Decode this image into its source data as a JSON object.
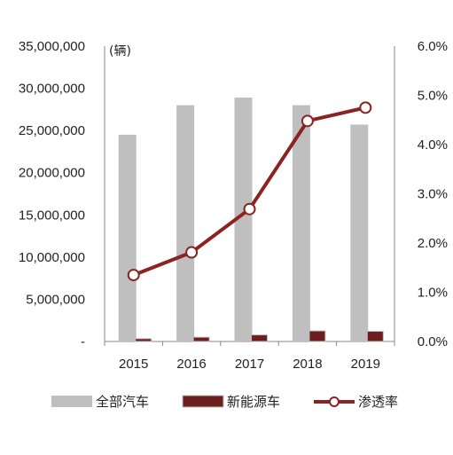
{
  "chart_data": {
    "type": "bar",
    "title": "",
    "xlabel": "",
    "unit_label": "(辆)",
    "categories": [
      "2015",
      "2016",
      "2017",
      "2018",
      "2019"
    ],
    "series": [
      {
        "name": "全部汽车",
        "kind": "bar",
        "axis": "left",
        "color": "#bfbfbf",
        "values": [
          24500000,
          28000000,
          28900000,
          28000000,
          25700000
        ]
      },
      {
        "name": "新能源车",
        "kind": "bar",
        "axis": "left",
        "color": "#6b1f1f",
        "values": [
          331000,
          507000,
          777000,
          1256000,
          1206000
        ]
      },
      {
        "name": "渗透率",
        "kind": "line",
        "axis": "right",
        "color": "#8b2323",
        "values": [
          1.35,
          1.81,
          2.69,
          4.48,
          4.75
        ]
      }
    ],
    "y_left": {
      "lim": [
        0,
        35000000
      ],
      "ticks": [
        0,
        5000000,
        10000000,
        15000000,
        20000000,
        25000000,
        30000000,
        35000000
      ],
      "tick_labels": [
        "-",
        "5,000,000",
        "10,000,000",
        "15,000,000",
        "20,000,000",
        "25,000,000",
        "30,000,000",
        "35,000,000"
      ]
    },
    "y_right": {
      "lim": [
        0,
        6
      ],
      "ticks": [
        0,
        1,
        2,
        3,
        4,
        5,
        6
      ],
      "tick_labels": [
        "0.0%",
        "1.0%",
        "2.0%",
        "3.0%",
        "4.0%",
        "5.0%",
        "6.0%"
      ]
    },
    "grid": false,
    "legend_position": "bottom"
  }
}
